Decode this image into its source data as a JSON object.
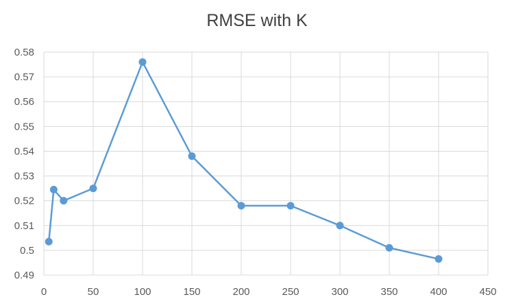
{
  "chart_data": {
    "type": "line",
    "title": "RMSE with K",
    "xlabel": "",
    "ylabel": "",
    "xlim": [
      0,
      450
    ],
    "ylim": [
      0.49,
      0.58
    ],
    "x_ticks": [
      "0",
      "50",
      "100",
      "150",
      "200",
      "250",
      "300",
      "350",
      "400",
      "450"
    ],
    "y_ticks": [
      "0.49",
      "0.5",
      "0.51",
      "0.52",
      "0.53",
      "0.54",
      "0.55",
      "0.56",
      "0.57",
      "0.58"
    ],
    "grid": true,
    "legend": "none",
    "color": "#5B9BD5",
    "series": [
      {
        "x": [
          5,
          10,
          20,
          50,
          100,
          150,
          200,
          250,
          300,
          350,
          400
        ],
        "y": [
          0.5035,
          0.5245,
          0.52,
          0.525,
          0.576,
          0.538,
          0.518,
          0.518,
          0.51,
          0.501,
          0.4965
        ]
      }
    ]
  }
}
